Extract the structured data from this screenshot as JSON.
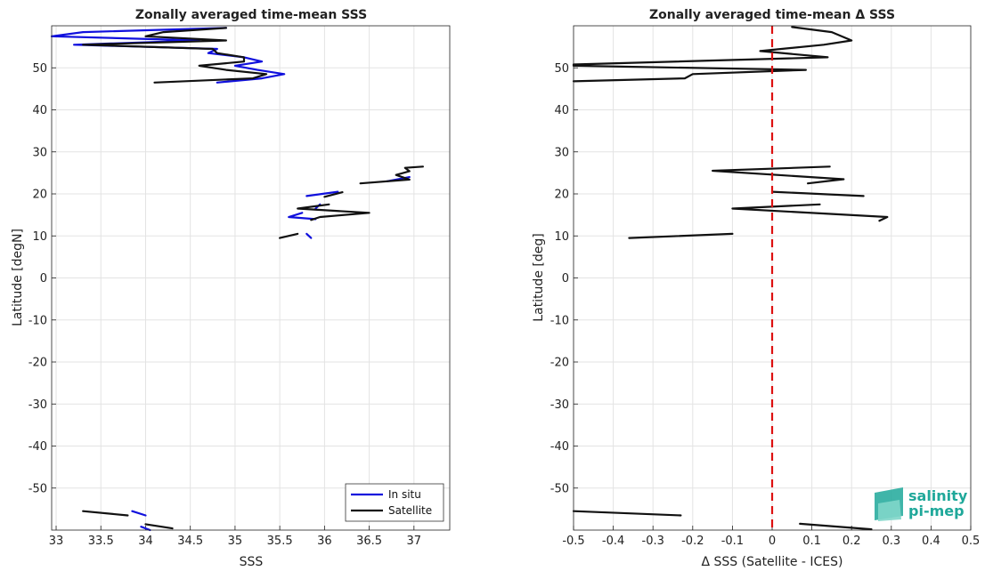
{
  "chart_data": [
    {
      "type": "line",
      "title": "Zonally averaged time-mean SSS",
      "xlabel": "SSS",
      "ylabel": "Latitude [degN]",
      "xlim": [
        32.95,
        37.4
      ],
      "ylim": [
        -60,
        60
      ],
      "xticks": [
        33,
        33.5,
        34,
        34.5,
        35,
        35.5,
        36,
        36.5,
        37
      ],
      "xtick_labels": [
        "33",
        "33.5",
        "34",
        "34.5",
        "35",
        "35.5",
        "36",
        "36.5",
        "37"
      ],
      "yticks": [
        -50,
        -40,
        -30,
        -20,
        -10,
        0,
        10,
        20,
        30,
        40,
        50
      ],
      "ytick_labels": [
        "-50",
        "-40",
        "-30",
        "-20",
        "-10",
        "0",
        "10",
        "20",
        "30",
        "40",
        "50"
      ],
      "grid": true,
      "legend": "bottom-right",
      "series": [
        {
          "name": "In situ",
          "color": "#1010dd",
          "segments": [
            [
              [
                34.8,
                46.5
              ],
              [
                35.3,
                47.5
              ],
              [
                35.55,
                48.5
              ],
              [
                35.25,
                49.5
              ],
              [
                35.0,
                50.5
              ],
              [
                35.3,
                51.5
              ],
              [
                35.1,
                52.5
              ],
              [
                34.7,
                53.5
              ],
              [
                34.8,
                54.5
              ],
              [
                33.2,
                55.5
              ],
              [
                34.6,
                56.5
              ],
              [
                32.95,
                57.5
              ],
              [
                33.3,
                58.5
              ],
              [
                34.9,
                59.5
              ]
            ],
            [
              [
                35.85,
                9.5
              ],
              [
                35.8,
                10.5
              ]
            ],
            [
              [
                35.9,
                14.0
              ],
              [
                35.6,
                14.5
              ],
              [
                35.75,
                15.5
              ]
            ],
            [
              [
                35.9,
                16.5
              ],
              [
                35.95,
                17.5
              ]
            ],
            [
              [
                35.8,
                19.5
              ],
              [
                36.15,
                20.5
              ]
            ],
            [
              [
                36.7,
                23.0
              ],
              [
                36.95,
                24.0
              ]
            ],
            [
              [
                33.85,
                -55.5
              ],
              [
                34.0,
                -56.5
              ]
            ],
            [
              [
                33.95,
                -59.2
              ],
              [
                34.05,
                -60.0
              ]
            ]
          ]
        },
        {
          "name": "Satellite",
          "color": "#111111",
          "segments": [
            [
              [
                34.1,
                46.5
              ],
              [
                35.2,
                47.5
              ],
              [
                35.35,
                48.5
              ],
              [
                34.9,
                49.5
              ],
              [
                34.6,
                50.5
              ],
              [
                35.1,
                51.5
              ],
              [
                35.1,
                52.5
              ],
              [
                34.8,
                53.5
              ],
              [
                34.75,
                54.5
              ],
              [
                33.3,
                55.5
              ],
              [
                34.9,
                56.5
              ],
              [
                34.0,
                57.5
              ],
              [
                34.2,
                58.5
              ],
              [
                34.9,
                59.5
              ]
            ],
            [
              [
                35.5,
                9.5
              ],
              [
                35.7,
                10.5
              ]
            ],
            [
              [
                35.85,
                13.8
              ],
              [
                35.95,
                14.5
              ],
              [
                36.5,
                15.5
              ],
              [
                35.7,
                16.5
              ],
              [
                36.05,
                17.5
              ]
            ],
            [
              [
                36.0,
                19.3
              ],
              [
                36.2,
                20.4
              ]
            ],
            [
              [
                36.4,
                22.5
              ],
              [
                36.95,
                23.4
              ],
              [
                36.8,
                24.5
              ],
              [
                36.95,
                25.4
              ],
              [
                36.9,
                26.2
              ],
              [
                37.1,
                26.5
              ]
            ],
            [
              [
                33.3,
                -55.5
              ],
              [
                33.8,
                -56.5
              ]
            ],
            [
              [
                34.0,
                -58.6
              ],
              [
                34.3,
                -59.6
              ]
            ]
          ]
        }
      ]
    },
    {
      "type": "line",
      "title": "Zonally averaged time-mean Δ SSS",
      "xlabel": "Δ SSS (Satellite - ICES)",
      "ylabel": "Latitude [deg]",
      "xlim": [
        -0.5,
        0.5
      ],
      "ylim": [
        -60,
        60
      ],
      "xticks": [
        -0.5,
        -0.4,
        -0.3,
        -0.2,
        -0.1,
        0,
        0.1,
        0.2,
        0.3,
        0.4,
        0.5
      ],
      "xtick_labels": [
        "-0.5",
        "-0.4",
        "-0.3",
        "-0.2",
        "-0.1",
        "0",
        "0.1",
        "0.2",
        "0.3",
        "0.4",
        "0.5"
      ],
      "yticks": [
        -50,
        -40,
        -30,
        -20,
        -10,
        0,
        10,
        20,
        30,
        40,
        50
      ],
      "ytick_labels": [
        "-50",
        "-40",
        "-30",
        "-20",
        "-10",
        "0",
        "10",
        "20",
        "30",
        "40",
        "50"
      ],
      "grid": true,
      "zero_line_color": "#dd1111",
      "series": [
        {
          "color": "#111111",
          "segments": [
            [
              [
                -0.5,
                46.8
              ],
              [
                -0.22,
                47.5
              ],
              [
                -0.2,
                48.5
              ],
              [
                0.085,
                49.5
              ],
              [
                -0.5,
                50.5
              ],
              [
                -0.5,
                50.8
              ],
              [
                0.14,
                52.5
              ],
              [
                -0.03,
                54.0
              ],
              [
                0.13,
                55.5
              ],
              [
                0.2,
                56.5
              ],
              [
                0.15,
                58.5
              ],
              [
                0.05,
                59.7
              ]
            ],
            [
              [
                -0.36,
                9.5
              ],
              [
                -0.1,
                10.5
              ]
            ],
            [
              [
                0.27,
                13.6
              ],
              [
                0.29,
                14.5
              ],
              [
                -0.1,
                16.5
              ],
              [
                0.12,
                17.5
              ]
            ],
            [
              [
                0.0,
                20.5
              ],
              [
                0.23,
                19.5
              ]
            ],
            [
              [
                0.09,
                22.5
              ],
              [
                0.18,
                23.5
              ],
              [
                -0.15,
                25.5
              ],
              [
                0.145,
                26.5
              ]
            ],
            [
              [
                -0.5,
                -55.5
              ],
              [
                -0.23,
                -56.5
              ]
            ],
            [
              [
                0.07,
                -58.5
              ],
              [
                0.25,
                -59.8
              ]
            ]
          ]
        }
      ]
    }
  ],
  "logo": {
    "line1": "salinity",
    "line2": "pi-mep"
  }
}
